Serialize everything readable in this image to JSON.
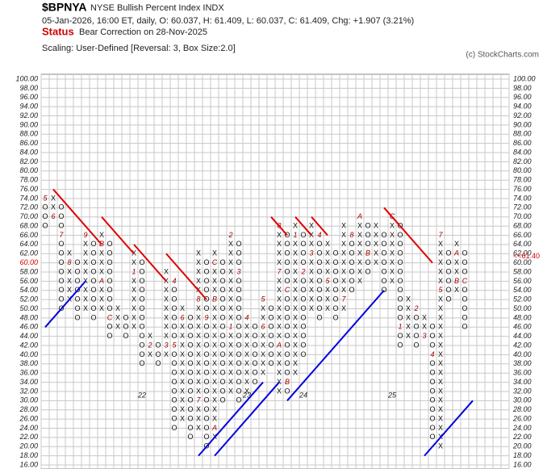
{
  "chart_data": {
    "type": "pnf",
    "symbol": "$BPNYA",
    "title": "NYSE Bullish Percent Index  INDX",
    "subtitle": "05-Jan-2026, 16:00 ET, daily, O: 60.037, H: 61.409, L: 60.037, C: 61.409, Chg: +1.907 (3.21%)",
    "status_label": "Status",
    "status": "Bear Correction on 28-Nov-2025",
    "scaling": "Scaling: User-Defined [Reversal: 3, Box Size:2.0]",
    "copyright": "(c) StockCharts.com",
    "box_size": 2,
    "current_box": 60,
    "last": {
      "value": 61.4,
      "label": "<<61.40"
    },
    "ylim": [
      16,
      100
    ],
    "yticks": [
      {
        "value": 100,
        "label": "100.00"
      },
      {
        "value": 98,
        "label": "98.00"
      },
      {
        "value": 96,
        "label": "96.00"
      },
      {
        "value": 94,
        "label": "94.00"
      },
      {
        "value": 92,
        "label": "92.00"
      },
      {
        "value": 90,
        "label": "90.00"
      },
      {
        "value": 88,
        "label": "88.00"
      },
      {
        "value": 86,
        "label": "86.00"
      },
      {
        "value": 84,
        "label": "84.00"
      },
      {
        "value": 82,
        "label": "82.00"
      },
      {
        "value": 80,
        "label": "80.00"
      },
      {
        "value": 78,
        "label": "78.00"
      },
      {
        "value": 76,
        "label": "76.00"
      },
      {
        "value": 74,
        "label": "74.00"
      },
      {
        "value": 72,
        "label": "72.00"
      },
      {
        "value": 70,
        "label": "70.00"
      },
      {
        "value": 68,
        "label": "68.00"
      },
      {
        "value": 66,
        "label": "66.00"
      },
      {
        "value": 64,
        "label": "64.00"
      },
      {
        "value": 62,
        "label": "62.00"
      },
      {
        "value": 60,
        "label": "60.00"
      },
      {
        "value": 58,
        "label": "58.00"
      },
      {
        "value": 56,
        "label": "56.00"
      },
      {
        "value": 54,
        "label": "54.00"
      },
      {
        "value": 52,
        "label": "52.00"
      },
      {
        "value": 50,
        "label": "50.00"
      },
      {
        "value": 48,
        "label": "48.00"
      },
      {
        "value": 46,
        "label": "46.00"
      },
      {
        "value": 44,
        "label": "44.00"
      },
      {
        "value": 42,
        "label": "42.00"
      },
      {
        "value": 40,
        "label": "40.00"
      },
      {
        "value": 38,
        "label": "38.00"
      },
      {
        "value": 36,
        "label": "36.00"
      },
      {
        "value": 34,
        "label": "34.00"
      },
      {
        "value": 32,
        "label": "32.00"
      },
      {
        "value": 30,
        "label": "30.00"
      },
      {
        "value": 28,
        "label": "28.00"
      },
      {
        "value": 26,
        "label": "26.00"
      },
      {
        "value": 24,
        "label": "24.00"
      },
      {
        "value": 22,
        "label": "22.00"
      },
      {
        "value": 20,
        "label": "20.00"
      },
      {
        "value": 18,
        "label": "18.00"
      },
      {
        "value": 16,
        "label": "16.00"
      }
    ],
    "xticks": [
      {
        "value": 12,
        "label": "22"
      },
      {
        "value": 25,
        "label": "23"
      },
      {
        "value": 32,
        "label": "24"
      },
      {
        "value": 43,
        "label": "25"
      }
    ],
    "columns": [
      {
        "type": "O",
        "low": 68,
        "high": 74,
        "months": [
          {
            "value": 74,
            "label": "5"
          }
        ]
      },
      {
        "type": "X",
        "low": 70,
        "high": 74,
        "months": [
          {
            "value": 70,
            "label": "6"
          }
        ]
      },
      {
        "type": "O",
        "low": 50,
        "high": 72,
        "months": [
          {
            "value": 66,
            "label": "7"
          }
        ]
      },
      {
        "type": "X",
        "low": 52,
        "high": 62,
        "months": [
          {
            "value": 60,
            "label": "8"
          }
        ]
      },
      {
        "type": "O",
        "low": 48,
        "high": 60,
        "months": []
      },
      {
        "type": "X",
        "low": 50,
        "high": 66,
        "months": [
          {
            "value": 66,
            "label": "9"
          }
        ]
      },
      {
        "type": "O",
        "low": 48,
        "high": 64,
        "months": []
      },
      {
        "type": "X",
        "low": 50,
        "high": 66,
        "months": [
          {
            "value": 64,
            "label": "B"
          },
          {
            "value": 56,
            "label": "A"
          }
        ]
      },
      {
        "type": "O",
        "low": 44,
        "high": 64,
        "months": [
          {
            "value": 48,
            "label": "C"
          }
        ]
      },
      {
        "type": "X",
        "low": 46,
        "high": 50,
        "months": []
      },
      {
        "type": "O",
        "low": 44,
        "high": 48,
        "months": []
      },
      {
        "type": "X",
        "low": 46,
        "high": 62,
        "months": [
          {
            "value": 58,
            "label": "1"
          }
        ]
      },
      {
        "type": "O",
        "low": 38,
        "high": 60,
        "months": []
      },
      {
        "type": "X",
        "low": 40,
        "high": 44,
        "months": [
          {
            "value": 42,
            "label": "2"
          }
        ]
      },
      {
        "type": "O",
        "low": 38,
        "high": 42,
        "months": []
      },
      {
        "type": "X",
        "low": 40,
        "high": 58,
        "months": [
          {
            "value": 42,
            "label": "3"
          }
        ]
      },
      {
        "type": "O",
        "low": 24,
        "high": 56,
        "months": [
          {
            "value": 56,
            "label": "4"
          },
          {
            "value": 42,
            "label": "5"
          }
        ]
      },
      {
        "type": "X",
        "low": 26,
        "high": 50,
        "months": [
          {
            "value": 48,
            "label": "6"
          }
        ]
      },
      {
        "type": "O",
        "low": 22,
        "high": 48,
        "months": []
      },
      {
        "type": "X",
        "low": 24,
        "high": 62,
        "months": [
          {
            "value": 30,
            "label": "7"
          },
          {
            "value": 52,
            "label": "8"
          }
        ]
      },
      {
        "type": "O",
        "low": 20,
        "high": 60,
        "months": [
          {
            "value": 48,
            "label": "9"
          }
        ]
      },
      {
        "type": "X",
        "low": 22,
        "high": 62,
        "months": [
          {
            "value": 24,
            "label": "A"
          },
          {
            "value": 52,
            "label": "B"
          },
          {
            "value": 60,
            "label": "C"
          }
        ]
      },
      {
        "type": "O",
        "low": 30,
        "high": 60,
        "months": []
      },
      {
        "type": "X",
        "low": 32,
        "high": 66,
        "months": [
          {
            "value": 46,
            "label": "1"
          },
          {
            "value": 66,
            "label": "2"
          }
        ]
      },
      {
        "type": "O",
        "low": 30,
        "high": 64,
        "months": [
          {
            "value": 58,
            "label": "3"
          }
        ]
      },
      {
        "type": "X",
        "low": 32,
        "high": 48,
        "months": [
          {
            "value": 48,
            "label": "4"
          }
        ]
      },
      {
        "type": "O",
        "low": 34,
        "high": 46,
        "months": []
      },
      {
        "type": "X",
        "low": 36,
        "high": 52,
        "months": [
          {
            "value": 52,
            "label": "5"
          },
          {
            "value": 46,
            "label": "6"
          }
        ]
      },
      {
        "type": "O",
        "low": 38,
        "high": 50,
        "months": []
      },
      {
        "type": "X",
        "low": 32,
        "high": 68,
        "months": [
          {
            "value": 42,
            "label": "A"
          },
          {
            "value": 58,
            "label": "7"
          },
          {
            "value": 68,
            "label": "8"
          }
        ]
      },
      {
        "type": "O",
        "low": 32,
        "high": 66,
        "months": [
          {
            "value": 34,
            "label": "B"
          },
          {
            "value": 54,
            "label": "C"
          }
        ]
      },
      {
        "type": "X",
        "low": 36,
        "high": 68,
        "months": [
          {
            "value": 66,
            "label": "1"
          }
        ]
      },
      {
        "type": "O",
        "low": 40,
        "high": 66,
        "months": [
          {
            "value": 58,
            "label": "2"
          }
        ]
      },
      {
        "type": "X",
        "low": 50,
        "high": 68,
        "months": [
          {
            "value": 62,
            "label": "3"
          }
        ]
      },
      {
        "type": "O",
        "low": 48,
        "high": 66,
        "months": [
          {
            "value": 66,
            "label": "4"
          }
        ]
      },
      {
        "type": "X",
        "low": 50,
        "high": 64,
        "months": [
          {
            "value": 56,
            "label": "5"
          }
        ]
      },
      {
        "type": "O",
        "low": 48,
        "high": 62,
        "months": []
      },
      {
        "type": "X",
        "low": 50,
        "high": 68,
        "months": [
          {
            "value": 52,
            "label": "7"
          }
        ]
      },
      {
        "type": "O",
        "low": 54,
        "high": 66,
        "months": [
          {
            "value": 66,
            "label": "8"
          }
        ]
      },
      {
        "type": "X",
        "low": 56,
        "high": 70,
        "months": [
          {
            "value": 70,
            "label": "A"
          }
        ]
      },
      {
        "type": "O",
        "low": 58,
        "high": 68,
        "months": [
          {
            "value": 62,
            "label": "B"
          }
        ]
      },
      {
        "type": "X",
        "low": 60,
        "high": 68,
        "months": []
      },
      {
        "type": "O",
        "low": 54,
        "high": 66,
        "months": []
      },
      {
        "type": "X",
        "low": 56,
        "high": 70,
        "months": [
          {
            "value": 70,
            "label": "C"
          }
        ]
      },
      {
        "type": "O",
        "low": 42,
        "high": 68,
        "months": [
          {
            "value": 46,
            "label": "1"
          }
        ]
      },
      {
        "type": "X",
        "low": 44,
        "high": 52,
        "months": []
      },
      {
        "type": "O",
        "low": 42,
        "high": 50,
        "months": [
          {
            "value": 50,
            "label": "2"
          }
        ]
      },
      {
        "type": "X",
        "low": 44,
        "high": 48,
        "months": [
          {
            "value": 44,
            "label": "3"
          }
        ]
      },
      {
        "type": "O",
        "low": 22,
        "high": 46,
        "months": [
          {
            "value": 40,
            "label": "4"
          }
        ]
      },
      {
        "type": "X",
        "low": 20,
        "high": 66,
        "months": [
          {
            "value": 54,
            "label": "5"
          },
          {
            "value": 66,
            "label": "7"
          }
        ]
      },
      {
        "type": "O",
        "low": 52,
        "high": 62,
        "months": []
      },
      {
        "type": "X",
        "low": 54,
        "high": 64,
        "months": [
          {
            "value": 62,
            "label": "A"
          },
          {
            "value": 56,
            "label": "B"
          }
        ]
      },
      {
        "type": "O",
        "low": 46,
        "high": 62,
        "months": [
          {
            "value": 56,
            "label": "C"
          }
        ]
      }
    ],
    "trendlines": [
      {
        "color": "#e00000",
        "from": [
          1,
          76
        ],
        "to": [
          7,
          64
        ]
      },
      {
        "color": "#e00000",
        "from": [
          7,
          70
        ],
        "to": [
          11,
          62
        ]
      },
      {
        "color": "#e00000",
        "from": [
          11,
          64
        ],
        "to": [
          15,
          56
        ]
      },
      {
        "color": "#e00000",
        "from": [
          15,
          62
        ],
        "to": [
          20,
          52
        ]
      },
      {
        "color": "#e00000",
        "from": [
          28,
          70
        ],
        "to": [
          30,
          66
        ]
      },
      {
        "color": "#e00000",
        "from": [
          31,
          70
        ],
        "to": [
          33,
          66
        ]
      },
      {
        "color": "#e00000",
        "from": [
          33,
          70
        ],
        "to": [
          35,
          66
        ]
      },
      {
        "color": "#e00000",
        "from": [
          42,
          72
        ],
        "to": [
          48,
          60
        ]
      },
      {
        "color": "#0000e0",
        "from": [
          0,
          46
        ],
        "to": [
          5,
          56
        ]
      },
      {
        "color": "#0000e0",
        "from": [
          19,
          18
        ],
        "to": [
          27,
          34
        ]
      },
      {
        "color": "#0000e0",
        "from": [
          21,
          18
        ],
        "to": [
          29,
          34
        ]
      },
      {
        "color": "#0000e0",
        "from": [
          30,
          30
        ],
        "to": [
          42,
          54
        ]
      },
      {
        "color": "#0000e0",
        "from": [
          47,
          18
        ],
        "to": [
          53,
          30
        ]
      }
    ]
  }
}
